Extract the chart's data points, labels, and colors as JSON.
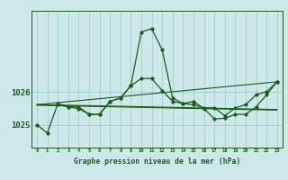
{
  "background_color": "#cce8e8",
  "line_color": "#1a5c1a",
  "grid_color": "#99cccc",
  "xlabel": "Graphe pression niveau de la mer (hPa)",
  "xlim_min": -0.5,
  "xlim_max": 23.5,
  "ylim_min": 1024.3,
  "ylim_max": 1028.5,
  "yticks": [
    1025,
    1026
  ],
  "xticks": [
    0,
    1,
    2,
    3,
    4,
    5,
    6,
    7,
    8,
    9,
    10,
    11,
    12,
    13,
    14,
    15,
    16,
    17,
    18,
    19,
    20,
    21,
    22,
    23
  ],
  "series_main": {
    "x": [
      0,
      1,
      2,
      3,
      4,
      5,
      6,
      7,
      8,
      9,
      10,
      11,
      12,
      13,
      14,
      15,
      16,
      17,
      18,
      19,
      20,
      21,
      22,
      23
    ],
    "y": [
      1025.0,
      1024.75,
      1025.65,
      1025.55,
      1025.55,
      1025.32,
      1025.32,
      1025.72,
      1025.82,
      1026.2,
      1027.85,
      1027.95,
      1027.3,
      1025.82,
      1025.65,
      1025.62,
      1025.52,
      1025.52,
      1025.28,
      1025.52,
      1025.62,
      1025.92,
      1026.02,
      1026.32
    ]
  },
  "series_obs": {
    "x": [
      2,
      3,
      4,
      5,
      6,
      7,
      8,
      9,
      10,
      11,
      12,
      13,
      14,
      15,
      16,
      17,
      18,
      19,
      20,
      21,
      22,
      23
    ],
    "y": [
      1025.62,
      1025.55,
      1025.5,
      1025.32,
      1025.32,
      1025.72,
      1025.82,
      1026.2,
      1026.42,
      1026.42,
      1026.05,
      1025.72,
      1025.65,
      1025.72,
      1025.5,
      1025.18,
      1025.2,
      1025.32,
      1025.32,
      1025.55,
      1025.92,
      1026.32
    ]
  },
  "series_trend_up": {
    "x": [
      0,
      23
    ],
    "y": [
      1025.62,
      1026.32
    ]
  },
  "series_trend_flat": {
    "x": [
      0,
      23
    ],
    "y": [
      1025.62,
      1025.47
    ]
  },
  "series_trend_flat2": {
    "x": [
      0,
      23
    ],
    "y": [
      1025.6,
      1025.45
    ]
  }
}
